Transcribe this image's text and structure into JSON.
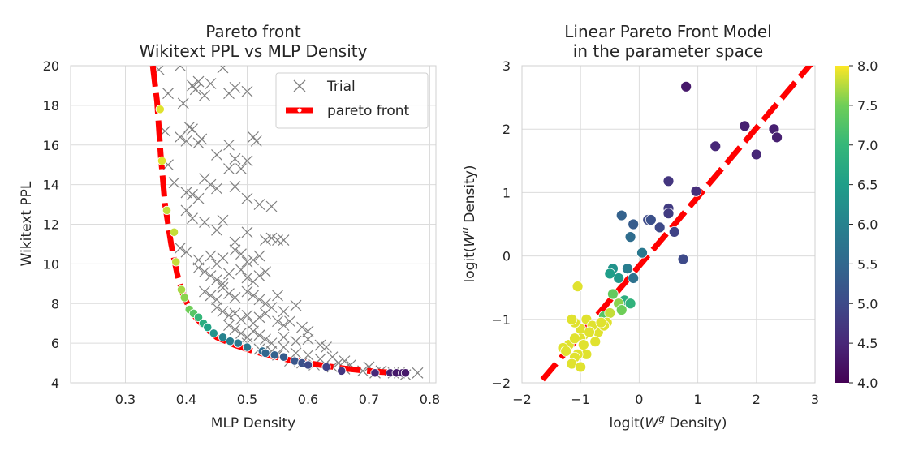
{
  "chart_data": [
    {
      "type": "scatter",
      "title_lines": [
        "Pareto front",
        "Wikitext PPL vs MLP Density"
      ],
      "xlabel": "MLP Density",
      "ylabel": "Wikitext PPL",
      "xlim": [
        0.21,
        0.81
      ],
      "ylim": [
        4,
        20
      ],
      "xticks": [
        "0.3",
        "0.4",
        "0.5",
        "0.6",
        "0.7",
        "0.8"
      ],
      "yticks": [
        "4",
        "6",
        "8",
        "10",
        "12",
        "14",
        "16",
        "18",
        "20"
      ],
      "grid": true,
      "legend": {
        "placement": "top-right",
        "entries": [
          "Trial",
          "pareto front"
        ]
      },
      "series": [
        {
          "name": "Trial",
          "marker": "x",
          "color": "#808080",
          "x": [
            0.355,
            0.37,
            0.39,
            0.395,
            0.41,
            0.415,
            0.42,
            0.43,
            0.44,
            0.46,
            0.47,
            0.48,
            0.5,
            0.365,
            0.39,
            0.4,
            0.405,
            0.41,
            0.42,
            0.425,
            0.45,
            0.47,
            0.48,
            0.49,
            0.5,
            0.51,
            0.515,
            0.37,
            0.38,
            0.4,
            0.41,
            0.42,
            0.43,
            0.44,
            0.45,
            0.47,
            0.48,
            0.5,
            0.52,
            0.54,
            0.55,
            0.4,
            0.41,
            0.43,
            0.45,
            0.46,
            0.48,
            0.5,
            0.53,
            0.54,
            0.56,
            0.39,
            0.4,
            0.42,
            0.44,
            0.45,
            0.46,
            0.48,
            0.49,
            0.5,
            0.51,
            0.52,
            0.42,
            0.43,
            0.44,
            0.45,
            0.46,
            0.47,
            0.49,
            0.5,
            0.51,
            0.52,
            0.53,
            0.43,
            0.44,
            0.45,
            0.46,
            0.47,
            0.48,
            0.5,
            0.51,
            0.52,
            0.53,
            0.54,
            0.55,
            0.56,
            0.58,
            0.45,
            0.46,
            0.47,
            0.48,
            0.49,
            0.5,
            0.51,
            0.52,
            0.53,
            0.55,
            0.56,
            0.57,
            0.59,
            0.6,
            0.47,
            0.48,
            0.49,
            0.5,
            0.51,
            0.52,
            0.53,
            0.54,
            0.56,
            0.58,
            0.6,
            0.62,
            0.63,
            0.5,
            0.52,
            0.54,
            0.56,
            0.58,
            0.6,
            0.62,
            0.64,
            0.65,
            0.66,
            0.67,
            0.7,
            0.72,
            0.75,
            0.78,
            0.55,
            0.57,
            0.59,
            0.61,
            0.64,
            0.66,
            0.69,
            0.71,
            0.74,
            0.76
          ],
          "y": [
            19.8,
            18.6,
            20,
            18.1,
            19.0,
            18.8,
            19.2,
            18.5,
            19.1,
            19.9,
            18.6,
            18.9,
            18.7,
            16.7,
            16.4,
            16.2,
            16.9,
            16.8,
            16.1,
            16.3,
            15.5,
            16.0,
            15.3,
            14.8,
            15.2,
            16.4,
            16.2,
            15.0,
            14.1,
            13.6,
            13.5,
            13.3,
            14.3,
            14.0,
            13.8,
            14.8,
            13.9,
            13.3,
            13.0,
            12.9,
            11.2,
            12.7,
            12.3,
            12.1,
            11.7,
            12.2,
            11.1,
            11.6,
            11.2,
            11.3,
            11.2,
            10.8,
            10.6,
            10.2,
            10.4,
            10.0,
            10.3,
            10.7,
            10.5,
            10.1,
            10.2,
            10.4,
            9.8,
            9.6,
            9.4,
            9.2,
            9.0,
            9.5,
            9.7,
            9.3,
            9.1,
            9.4,
            9.6,
            8.6,
            8.4,
            8.2,
            8.8,
            8.5,
            8.3,
            8.6,
            8.4,
            8.2,
            8.0,
            7.8,
            8.4,
            7.6,
            7.9,
            7.8,
            7.6,
            7.4,
            7.5,
            7.2,
            7.4,
            7.0,
            7.3,
            7.5,
            7.1,
            6.9,
            7.1,
            6.8,
            6.6,
            6.9,
            6.7,
            6.5,
            6.3,
            6.6,
            6.4,
            6.2,
            6.0,
            6.3,
            6.1,
            6.2,
            5.9,
            5.8,
            6.0,
            5.7,
            5.6,
            5.8,
            5.5,
            5.4,
            5.2,
            5.3,
            5.0,
            5.1,
            4.9,
            4.8,
            4.6,
            4.5,
            4.5,
            5.4,
            5.1,
            5.0,
            4.9,
            4.8,
            4.7,
            4.6,
            4.5,
            4.5,
            4.4
          ]
        },
        {
          "name": "pareto front",
          "line": "dashed",
          "color": "#ff0000",
          "x": [
            0.345,
            0.352,
            0.358,
            0.365,
            0.375,
            0.385,
            0.395,
            0.41,
            0.43,
            0.45,
            0.48,
            0.51,
            0.54,
            0.57,
            0.6,
            0.63,
            0.66,
            0.69,
            0.72,
            0.75
          ],
          "y": [
            20,
            18.2,
            15.5,
            13.0,
            11.0,
            9.5,
            8.4,
            7.5,
            6.8,
            6.3,
            5.9,
            5.6,
            5.35,
            5.15,
            5.0,
            4.85,
            4.72,
            4.62,
            4.55,
            4.5
          ]
        },
        {
          "name": "pareto points",
          "marker": "o",
          "colormap": "viridis",
          "x": [
            0.357,
            0.36,
            0.368,
            0.38,
            0.383,
            0.392,
            0.397,
            0.405,
            0.412,
            0.42,
            0.428,
            0.435,
            0.445,
            0.46,
            0.472,
            0.485,
            0.5,
            0.525,
            0.53,
            0.545,
            0.56,
            0.578,
            0.59,
            0.6,
            0.63,
            0.655,
            0.71,
            0.735,
            0.745,
            0.755,
            0.76
          ],
          "y": [
            17.8,
            15.2,
            12.7,
            11.6,
            10.1,
            8.7,
            8.3,
            7.7,
            7.5,
            7.3,
            7.0,
            6.8,
            6.5,
            6.3,
            6.1,
            6.0,
            5.8,
            5.6,
            5.5,
            5.4,
            5.3,
            5.1,
            5.0,
            4.9,
            4.8,
            4.6,
            4.5,
            4.5,
            4.5,
            4.5,
            4.5
          ],
          "c": [
            7.9,
            7.9,
            7.8,
            7.8,
            7.8,
            7.7,
            7.6,
            7.5,
            7.3,
            7.0,
            6.8,
            6.6,
            6.3,
            6.0,
            5.9,
            5.8,
            5.8,
            5.6,
            5.5,
            5.4,
            5.3,
            5.2,
            5.1,
            5.0,
            4.9,
            4.7,
            4.5,
            4.4,
            4.3,
            4.3,
            4.3
          ]
        }
      ]
    },
    {
      "type": "scatter",
      "title_lines": [
        "Linear Pareto Front Model",
        "in the parameter space"
      ],
      "xlabel": "logit(W^g Density)",
      "ylabel": "logit(W^u Density)",
      "xlim": [
        -2,
        3
      ],
      "ylim": [
        -2,
        3
      ],
      "xticks": [
        "−2",
        "−1",
        "0",
        "1",
        "2",
        "3"
      ],
      "yticks": [
        "−2",
        "−1",
        "0",
        "1",
        "2",
        "3"
      ],
      "grid": true,
      "colorbar": {
        "colormap": "viridis",
        "range": [
          4.0,
          8.0
        ],
        "ticks": [
          "4.0",
          "4.5",
          "5.0",
          "5.5",
          "6.0",
          "6.5",
          "7.0",
          "7.5",
          "8.0"
        ]
      },
      "series": [
        {
          "name": "fit line",
          "line": "dashed",
          "color": "#ff0000",
          "x": [
            -1.65,
            2.95
          ],
          "y": [
            -1.95,
            3.05
          ]
        },
        {
          "name": "points",
          "marker": "o",
          "colormap": "viridis",
          "x": [
            0.8,
            1.8,
            2.3,
            2.35,
            1.3,
            2.0,
            0.97,
            0.5,
            0.5,
            0.5,
            0.6,
            0.35,
            0.15,
            0.2,
            -0.1,
            -0.3,
            0.75,
            -0.15,
            0.05,
            -0.2,
            -0.1,
            -0.35,
            -0.25,
            -0.45,
            -0.5,
            -0.6,
            -0.15,
            -0.35,
            -0.3,
            -0.45,
            -0.5,
            -1.05,
            -0.55,
            -0.7,
            -0.9,
            -0.6,
            -0.8,
            -0.95,
            -1.0,
            -1.1,
            -0.85,
            -0.75,
            -1.15,
            -1.0,
            -0.65,
            -1.2,
            -1.3,
            -0.9,
            -1.05,
            -1.1,
            -0.95,
            -1.15,
            -1.25,
            -1.0,
            -1.1
          ],
          "y": [
            2.67,
            2.05,
            2.0,
            1.87,
            1.73,
            1.6,
            1.02,
            1.18,
            0.75,
            0.67,
            0.38,
            0.45,
            0.57,
            0.57,
            0.5,
            0.64,
            -0.05,
            0.3,
            0.05,
            -0.2,
            -0.35,
            -0.35,
            -0.7,
            -0.2,
            -0.28,
            -0.95,
            -0.75,
            -0.75,
            -0.85,
            -0.6,
            -0.9,
            -0.48,
            -1.05,
            -1.2,
            -1.0,
            -1.1,
            -1.1,
            -1.25,
            -1.15,
            -1.05,
            -1.2,
            -1.35,
            -1.0,
            -1.3,
            -1.05,
            -1.4,
            -1.45,
            -1.55,
            -1.55,
            -1.6,
            -1.4,
            -1.7,
            -1.5,
            -1.75,
            -1.3
          ],
          "c": [
            4.3,
            4.4,
            4.4,
            4.4,
            4.5,
            4.5,
            4.6,
            4.7,
            4.8,
            4.8,
            4.9,
            5.0,
            5.0,
            5.1,
            5.3,
            5.4,
            5.0,
            5.6,
            5.8,
            5.9,
            5.7,
            6.4,
            6.8,
            6.3,
            6.5,
            7.3,
            6.9,
            7.6,
            7.5,
            7.4,
            7.8,
            7.9,
            7.9,
            7.9,
            7.9,
            7.9,
            7.9,
            7.9,
            7.9,
            7.9,
            7.9,
            7.9,
            7.9,
            7.9,
            7.9,
            7.9,
            7.9,
            7.9,
            7.9,
            7.9,
            7.9,
            7.9,
            7.9,
            7.9,
            7.9
          ]
        }
      ]
    }
  ]
}
